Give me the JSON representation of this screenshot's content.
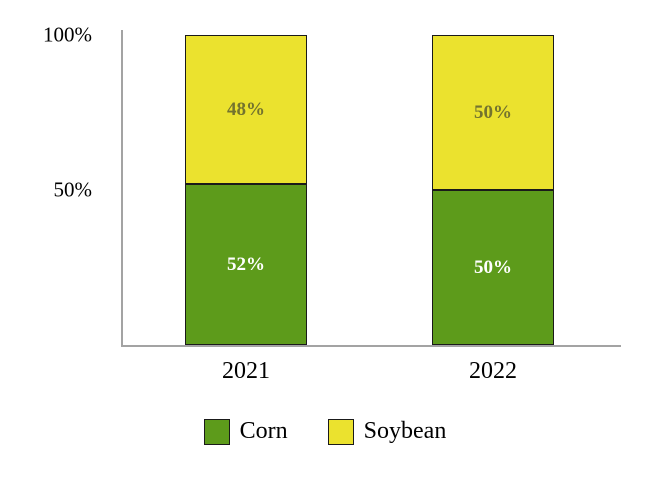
{
  "chart_data": {
    "type": "bar",
    "stacked": true,
    "categories": [
      "2021",
      "2022"
    ],
    "series": [
      {
        "name": "Corn",
        "color": "#5d9b1b",
        "label_color": "#ffffff",
        "values": [
          52,
          50
        ]
      },
      {
        "name": "Soybean",
        "color": "#ebe22e",
        "label_color": "#73732e",
        "values": [
          48,
          50
        ]
      }
    ],
    "ylim": [
      0,
      100
    ],
    "yticks": [
      {
        "value": 50,
        "label": "50%"
      },
      {
        "value": 100,
        "label": "100%"
      }
    ],
    "value_suffix": "%",
    "legend_position": "bottom",
    "grid": false
  }
}
